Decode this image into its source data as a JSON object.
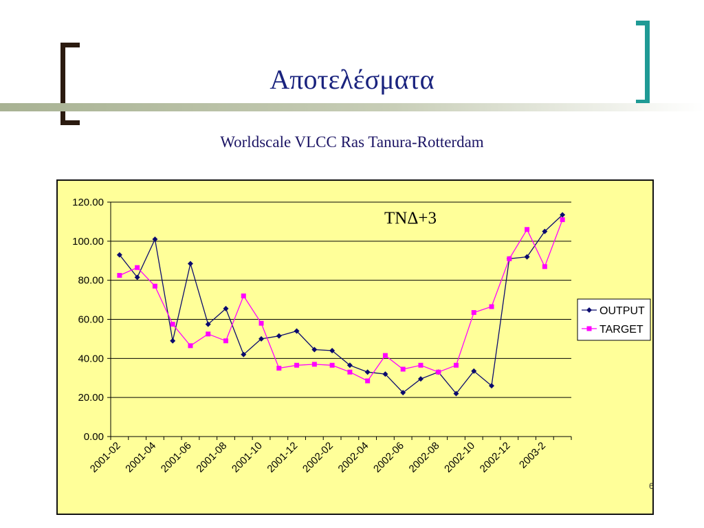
{
  "slide": {
    "title": "Αποτελέσματα",
    "page_number": "6"
  },
  "colors": {
    "title": "#1a237e",
    "chart_bg": "#ffff99",
    "output_series": "#0a0a6e",
    "target_series": "#ff00ff",
    "left_bracket": "#2b1b10",
    "right_bracket": "#1f9a95"
  },
  "chart_data": {
    "type": "line",
    "title": "Worldscale VLCC Ras Tanura-Rotterdam",
    "annotation": "ΤΝΔ+3",
    "xlabel": "",
    "ylabel": "",
    "ylim": [
      0,
      120
    ],
    "yticks": [
      "0.00",
      "20.00",
      "40.00",
      "60.00",
      "80.00",
      "100.00",
      "120.00"
    ],
    "x_tick_labels": [
      "2001-02",
      "2001-04",
      "2001-06",
      "2001-08",
      "2001-10",
      "2001-12",
      "2002-02",
      "2002-04",
      "2002-06",
      "2002-08",
      "2002-10",
      "2002-12",
      "2003-2"
    ],
    "n_points": 26,
    "grid": "horizontal",
    "legend": "right",
    "series": [
      {
        "name": "OUTPUT",
        "marker": "diamond",
        "values": [
          93,
          81.5,
          101,
          49,
          88.5,
          57.5,
          65.5,
          42,
          50,
          51.5,
          54,
          44.5,
          44,
          36.5,
          33,
          32,
          22.5,
          29.5,
          33,
          22,
          33.5,
          26,
          91,
          92,
          105,
          113.5
        ]
      },
      {
        "name": "TARGET",
        "marker": "square",
        "values": [
          82.5,
          86.5,
          77,
          57.5,
          46.5,
          52.5,
          49,
          72,
          58,
          35,
          36.5,
          37,
          36.5,
          33,
          28.5,
          41.5,
          34.5,
          36.5,
          33,
          36.5,
          63.5,
          66.5,
          91,
          106,
          87,
          111
        ]
      }
    ]
  }
}
